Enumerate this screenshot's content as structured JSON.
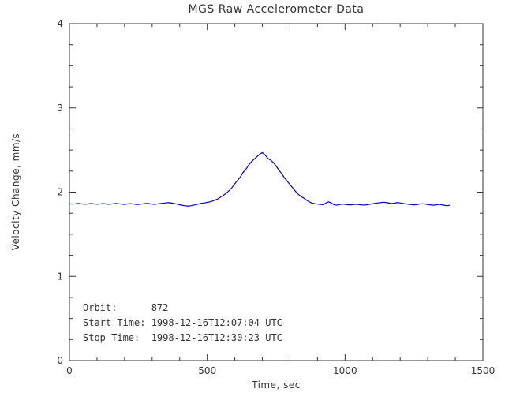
{
  "chart_data": {
    "type": "line",
    "title": "MGS Raw Accelerometer Data",
    "xlabel": "Time, sec",
    "ylabel": "Velocity Change, mm/s",
    "xlim": [
      0,
      1500
    ],
    "ylim": [
      0,
      4
    ],
    "xticks": [
      0,
      500,
      1000,
      1500
    ],
    "yticks": [
      0,
      1,
      2,
      3,
      4
    ],
    "x_minor_step": 100,
    "y_minor_step": 0.25,
    "grid": false,
    "legend": "none",
    "colors": {
      "line": "#0000cc",
      "axis": "#333333",
      "background": "#ffffff"
    },
    "annotations": [
      "Orbit:      872",
      "Start Time: 1998-12-16T12:07:04 UTC",
      "Stop Time:  1998-12-16T12:30:23 UTC"
    ],
    "series": [
      {
        "name": "velocity_change",
        "x": [
          0,
          10,
          20,
          30,
          40,
          50,
          60,
          70,
          80,
          90,
          100,
          110,
          120,
          130,
          140,
          150,
          160,
          170,
          180,
          190,
          200,
          210,
          220,
          230,
          240,
          250,
          260,
          270,
          280,
          290,
          300,
          310,
          320,
          330,
          340,
          350,
          360,
          370,
          380,
          390,
          400,
          410,
          420,
          430,
          440,
          450,
          460,
          470,
          480,
          490,
          500,
          510,
          520,
          530,
          540,
          550,
          560,
          570,
          580,
          590,
          600,
          610,
          620,
          630,
          640,
          650,
          660,
          670,
          680,
          690,
          700,
          710,
          720,
          730,
          740,
          750,
          760,
          770,
          780,
          790,
          800,
          810,
          820,
          830,
          840,
          850,
          860,
          870,
          880,
          890,
          900,
          910,
          920,
          930,
          940,
          950,
          960,
          970,
          980,
          990,
          1000,
          1010,
          1020,
          1030,
          1040,
          1050,
          1060,
          1070,
          1080,
          1090,
          1100,
          1110,
          1120,
          1130,
          1140,
          1150,
          1160,
          1170,
          1180,
          1190,
          1200,
          1210,
          1220,
          1230,
          1240,
          1250,
          1260,
          1270,
          1280,
          1290,
          1300,
          1310,
          1320,
          1330,
          1340,
          1350,
          1360,
          1370,
          1380
        ],
        "y": [
          1.862,
          1.858,
          1.86,
          1.865,
          1.862,
          1.858,
          1.857,
          1.861,
          1.864,
          1.86,
          1.857,
          1.859,
          1.863,
          1.861,
          1.856,
          1.858,
          1.862,
          1.865,
          1.861,
          1.857,
          1.855,
          1.859,
          1.863,
          1.86,
          1.855,
          1.853,
          1.858,
          1.862,
          1.866,
          1.863,
          1.858,
          1.855,
          1.86,
          1.864,
          1.868,
          1.872,
          1.876,
          1.871,
          1.865,
          1.858,
          1.85,
          1.843,
          1.838,
          1.834,
          1.838,
          1.845,
          1.852,
          1.86,
          1.868,
          1.872,
          1.878,
          1.885,
          1.895,
          1.908,
          1.922,
          1.945,
          1.965,
          1.99,
          2.02,
          2.055,
          2.1,
          2.14,
          2.18,
          2.235,
          2.27,
          2.32,
          2.36,
          2.39,
          2.42,
          2.45,
          2.47,
          2.44,
          2.4,
          2.38,
          2.35,
          2.31,
          2.26,
          2.22,
          2.17,
          2.13,
          2.09,
          2.05,
          2.01,
          1.975,
          1.95,
          1.93,
          1.905,
          1.885,
          1.87,
          1.862,
          1.858,
          1.855,
          1.85,
          1.87,
          1.885,
          1.872,
          1.85,
          1.845,
          1.852,
          1.858,
          1.855,
          1.85,
          1.848,
          1.852,
          1.856,
          1.852,
          1.848,
          1.846,
          1.85,
          1.856,
          1.862,
          1.868,
          1.872,
          1.876,
          1.88,
          1.876,
          1.87,
          1.865,
          1.87,
          1.876,
          1.872,
          1.866,
          1.86,
          1.856,
          1.852,
          1.848,
          1.852,
          1.858,
          1.862,
          1.858,
          1.852,
          1.848,
          1.844,
          1.848,
          1.854,
          1.85,
          1.844,
          1.838,
          1.845
        ]
      }
    ]
  }
}
